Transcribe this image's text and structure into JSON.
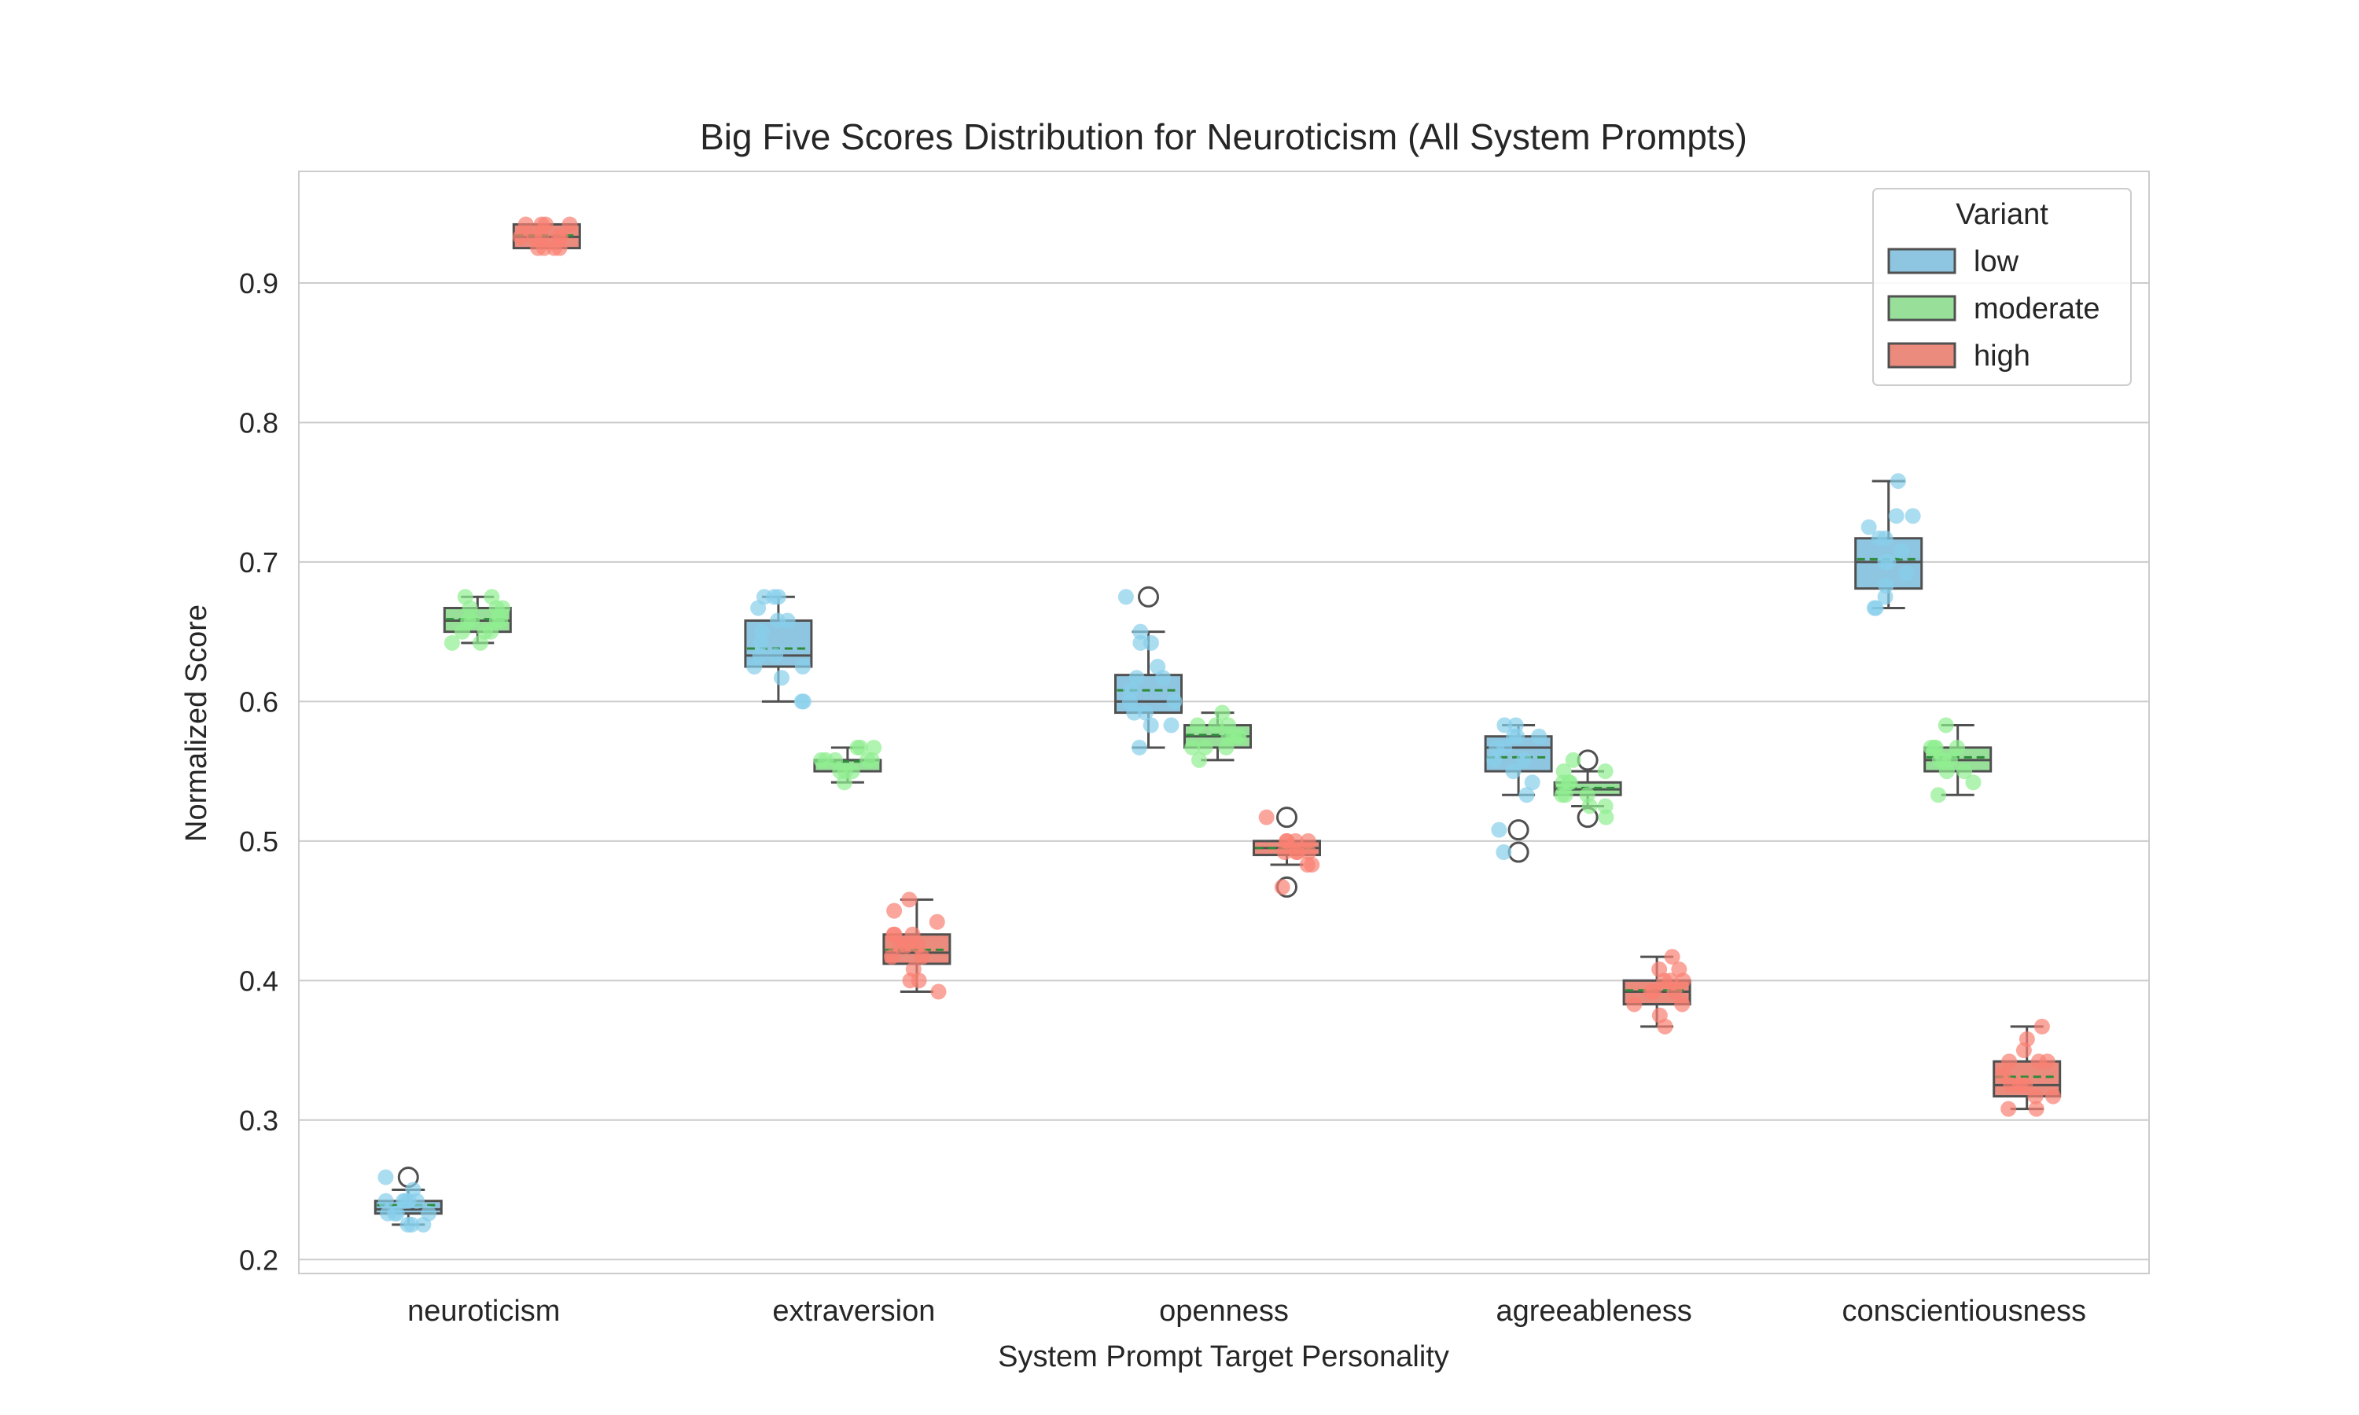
{
  "chart_data": {
    "type": "box",
    "title": "Big Five Scores Distribution for Neuroticism (All System Prompts)",
    "xlabel": "System Prompt Target Personality",
    "ylabel": "Normalized Score",
    "ylim": [
      0.19,
      0.98
    ],
    "yticks": [
      0.2,
      0.3,
      0.4,
      0.5,
      0.6,
      0.7,
      0.8,
      0.9
    ],
    "grid": true,
    "legend": {
      "title": "Variant",
      "position": "top-right"
    },
    "categories": [
      "neuroticism",
      "extraversion",
      "openness",
      "agreeableness",
      "conscientiousness"
    ],
    "series": [
      {
        "name": "low",
        "box_color": "#8ec5e0",
        "point_color": "#87ceeb",
        "boxes": [
          {
            "q1": 0.233,
            "median": 0.236,
            "mean": 0.239,
            "q3": 0.242,
            "whisker_low": 0.225,
            "whisker_high": 0.25,
            "outliers": [
              0.259
            ]
          },
          {
            "q1": 0.625,
            "median": 0.633,
            "mean": 0.638,
            "q3": 0.658,
            "whisker_low": 0.6,
            "whisker_high": 0.675,
            "outliers": []
          },
          {
            "q1": 0.592,
            "median": 0.6,
            "mean": 0.608,
            "q3": 0.619,
            "whisker_low": 0.567,
            "whisker_high": 0.65,
            "outliers": [
              0.675
            ]
          },
          {
            "q1": 0.55,
            "median": 0.567,
            "mean": 0.56,
            "q3": 0.575,
            "whisker_low": 0.533,
            "whisker_high": 0.583,
            "outliers": [
              0.508,
              0.492
            ]
          },
          {
            "q1": 0.681,
            "median": 0.7,
            "mean": 0.702,
            "q3": 0.717,
            "whisker_low": 0.667,
            "whisker_high": 0.758,
            "outliers": []
          }
        ],
        "points": [
          [
            0.225,
            0.225,
            0.233,
            0.233,
            0.242,
            0.242,
            0.242,
            0.233,
            0.25,
            0.242,
            0.233,
            0.225,
            0.242,
            0.259
          ],
          [
            0.675,
            0.675,
            0.658,
            0.633,
            0.617,
            0.658,
            0.642,
            0.625,
            0.6,
            0.6,
            0.667,
            0.633,
            0.625,
            0.65,
            0.675
          ],
          [
            0.642,
            0.625,
            0.617,
            0.608,
            0.6,
            0.592,
            0.592,
            0.583,
            0.567,
            0.6,
            0.617,
            0.642,
            0.65,
            0.675,
            0.583
          ],
          [
            0.583,
            0.575,
            0.575,
            0.567,
            0.558,
            0.55,
            0.542,
            0.533,
            0.508,
            0.492,
            0.583,
            0.567,
            0.558,
            0.575
          ],
          [
            0.758,
            0.733,
            0.733,
            0.717,
            0.717,
            0.7,
            0.7,
            0.692,
            0.683,
            0.675,
            0.667,
            0.667,
            0.708,
            0.725
          ]
        ]
      },
      {
        "name": "moderate",
        "box_color": "#98e09a",
        "point_color": "#90ee90",
        "boxes": [
          {
            "q1": 0.65,
            "median": 0.658,
            "mean": 0.659,
            "q3": 0.667,
            "whisker_low": 0.642,
            "whisker_high": 0.675,
            "outliers": []
          },
          {
            "q1": 0.55,
            "median": 0.558,
            "mean": 0.557,
            "q3": 0.558,
            "whisker_low": 0.542,
            "whisker_high": 0.567,
            "outliers": []
          },
          {
            "q1": 0.567,
            "median": 0.575,
            "mean": 0.576,
            "q3": 0.583,
            "whisker_low": 0.558,
            "whisker_high": 0.592,
            "outliers": []
          },
          {
            "q1": 0.533,
            "median": 0.537,
            "mean": 0.538,
            "q3": 0.542,
            "whisker_low": 0.525,
            "whisker_high": 0.55,
            "outliers": [
              0.558,
              0.517
            ]
          },
          {
            "q1": 0.55,
            "median": 0.558,
            "mean": 0.56,
            "q3": 0.567,
            "whisker_low": 0.533,
            "whisker_high": 0.583,
            "outliers": []
          }
        ],
        "points": [
          [
            0.675,
            0.675,
            0.667,
            0.667,
            0.658,
            0.658,
            0.65,
            0.65,
            0.642,
            0.642,
            0.658,
            0.667,
            0.65,
            0.658
          ],
          [
            0.567,
            0.567,
            0.558,
            0.558,
            0.558,
            0.55,
            0.55,
            0.542,
            0.558,
            0.567,
            0.55,
            0.558
          ],
          [
            0.592,
            0.583,
            0.583,
            0.575,
            0.575,
            0.567,
            0.567,
            0.558,
            0.575,
            0.583,
            0.567,
            0.575
          ],
          [
            0.558,
            0.55,
            0.542,
            0.542,
            0.533,
            0.533,
            0.525,
            0.525,
            0.517,
            0.542,
            0.533,
            0.55
          ],
          [
            0.583,
            0.567,
            0.567,
            0.558,
            0.558,
            0.55,
            0.542,
            0.533,
            0.558,
            0.567,
            0.55,
            0.567
          ]
        ]
      },
      {
        "name": "high",
        "box_color": "#ea8b7e",
        "point_color": "#fa8072",
        "boxes": [
          {
            "q1": 0.925,
            "median": 0.933,
            "mean": 0.934,
            "q3": 0.942,
            "whisker_low": 0.925,
            "whisker_high": 0.942,
            "outliers": []
          },
          {
            "q1": 0.412,
            "median": 0.42,
            "mean": 0.422,
            "q3": 0.433,
            "whisker_low": 0.392,
            "whisker_high": 0.458,
            "outliers": []
          },
          {
            "q1": 0.49,
            "median": 0.495,
            "mean": 0.495,
            "q3": 0.5,
            "whisker_low": 0.483,
            "whisker_high": 0.5,
            "outliers": [
              0.517,
              0.467
            ]
          },
          {
            "q1": 0.383,
            "median": 0.392,
            "mean": 0.393,
            "q3": 0.4,
            "whisker_low": 0.367,
            "whisker_high": 0.417,
            "outliers": []
          },
          {
            "q1": 0.317,
            "median": 0.325,
            "mean": 0.331,
            "q3": 0.342,
            "whisker_low": 0.308,
            "whisker_high": 0.367,
            "outliers": []
          }
        ],
        "points": [
          [
            0.942,
            0.942,
            0.942,
            0.933,
            0.933,
            0.933,
            0.925,
            0.925,
            0.925,
            0.942,
            0.933,
            0.925,
            0.933
          ],
          [
            0.458,
            0.45,
            0.442,
            0.433,
            0.433,
            0.425,
            0.425,
            0.417,
            0.417,
            0.408,
            0.4,
            0.4,
            0.392,
            0.425,
            0.433
          ],
          [
            0.517,
            0.5,
            0.5,
            0.5,
            0.492,
            0.492,
            0.492,
            0.483,
            0.483,
            0.467,
            0.5,
            0.492
          ],
          [
            0.417,
            0.408,
            0.408,
            0.4,
            0.4,
            0.392,
            0.392,
            0.383,
            0.383,
            0.375,
            0.367,
            0.392,
            0.4
          ],
          [
            0.367,
            0.358,
            0.35,
            0.342,
            0.342,
            0.333,
            0.325,
            0.325,
            0.317,
            0.317,
            0.308,
            0.308,
            0.342,
            0.325
          ]
        ]
      }
    ],
    "mean_line_color": "#2e8b3a",
    "box_edge_color": "#505050"
  }
}
